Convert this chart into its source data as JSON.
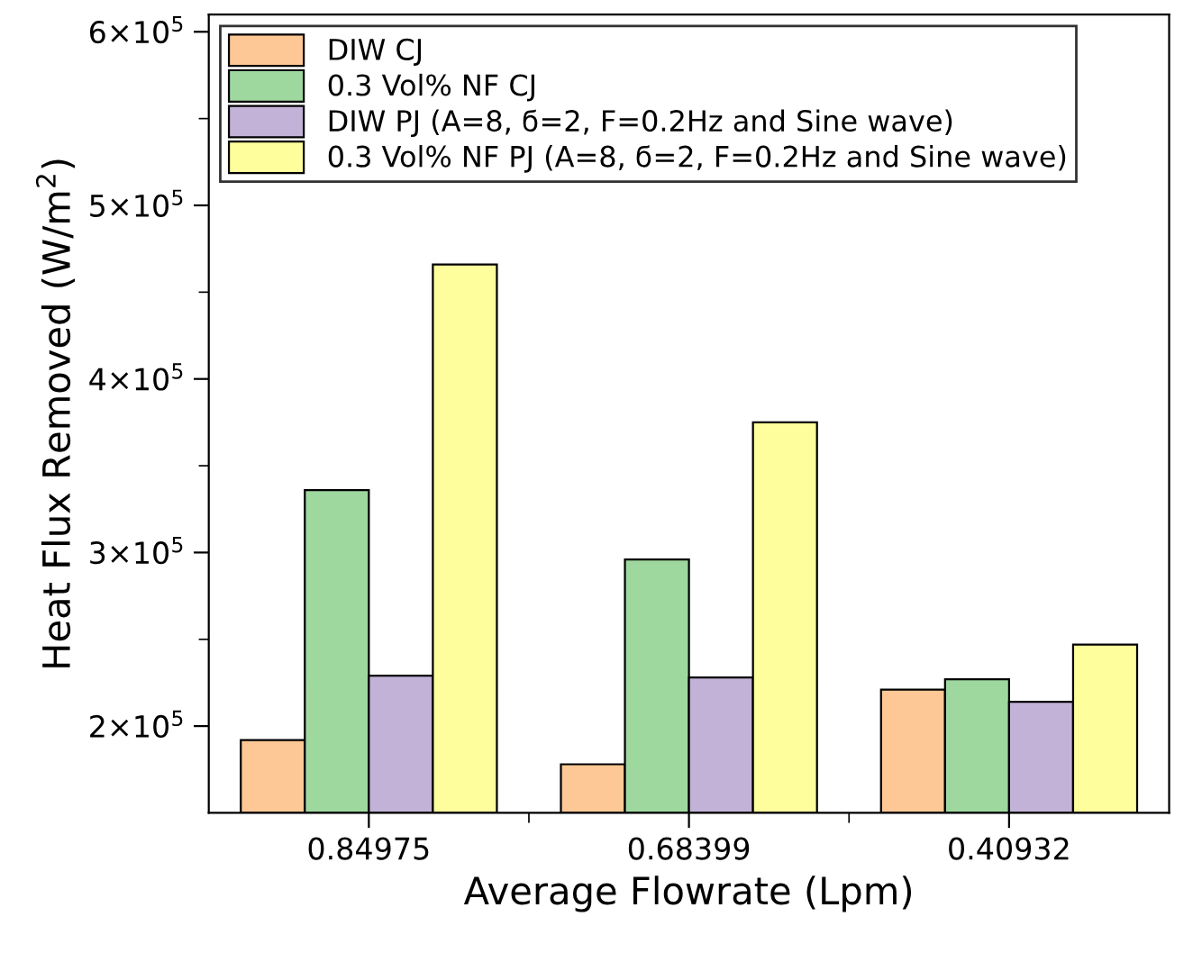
{
  "chart_data": {
    "type": "bar",
    "xlabel": "Average Flowrate (Lpm)",
    "ylabel": "Heat Flux Removed (W/m$^{2}$)",
    "categories": [
      "0.84975",
      "0.68399",
      "0.40932"
    ],
    "series": [
      {
        "name": "DIW CJ",
        "color": "#fdc895",
        "values": [
          192000,
          178000,
          221000
        ]
      },
      {
        "name": "0.3 Vol% NF CJ",
        "color": "#9fd89f",
        "values": [
          336000,
          296000,
          227000
        ]
      },
      {
        "name": "DIW PJ (A=8, ϭ=2, F=0.2Hz and Sine wave)",
        "color": "#c2b2d7",
        "values": [
          229000,
          228000,
          214000
        ]
      },
      {
        "name": "0.3 Vol% NF PJ (A=8, ϭ=2, F=0.2Hz and Sine wave)",
        "color": "#fefe9c",
        "values": [
          466000,
          375000,
          247000
        ]
      }
    ],
    "ylim": [
      150000,
      610000
    ],
    "yticks": [
      {
        "value": 200000,
        "label": "2×10$^{5}$"
      },
      {
        "value": 300000,
        "label": "3×10$^{5}$"
      },
      {
        "value": 400000,
        "label": "4×10$^{5}$"
      },
      {
        "value": 500000,
        "label": "5×10$^{5}$"
      },
      {
        "value": 600000,
        "label": "6×10$^{5}$"
      }
    ],
    "legend": "top left",
    "grid": false
  }
}
